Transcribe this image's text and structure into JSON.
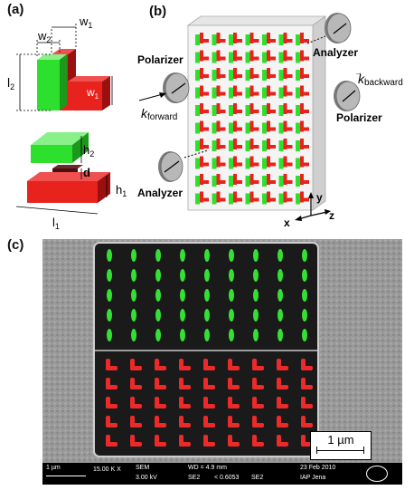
{
  "panel_a": {
    "label": "(a)",
    "dims": {
      "w1": "w",
      "w1_sub": "1",
      "w2": "w",
      "w2_sub": "2",
      "l2": "l",
      "l2_sub": "2",
      "h2": "h",
      "h2_sub": "2",
      "d": "d",
      "h1": "h",
      "h1_sub": "1",
      "l1": "l",
      "l1_sub": "1"
    }
  },
  "panel_b": {
    "label": "(b)",
    "polarizer_left": "Polarizer",
    "polarizer_right": "Polarizer",
    "analyzer_top": "Analyzer",
    "analyzer_bottom": "Analyzer",
    "k_forward_main": "k",
    "k_forward_sub": "forward",
    "k_backward_main": "k",
    "k_backward_sub": "backward",
    "axis_x": "x",
    "axis_y": "y",
    "axis_z": "z"
  },
  "panel_c": {
    "label": "(c)",
    "scalebar_label": "1 µm",
    "info": {
      "scale": "1 µm",
      "mag": "15.00 K X",
      "sem": "SEM",
      "kv": "3.00 kV",
      "wd": "WD = 4.9 mm",
      "se2a": "SE2",
      "ratio": "< 0.6053",
      "se2b": "SE2",
      "date": "23 Feb 2010",
      "org": "IAP Jena"
    }
  },
  "colors": {
    "green": "#2ee02e",
    "red": "#e8231e",
    "dark_red": "#9a1010",
    "gray": "#8a8a8a"
  }
}
